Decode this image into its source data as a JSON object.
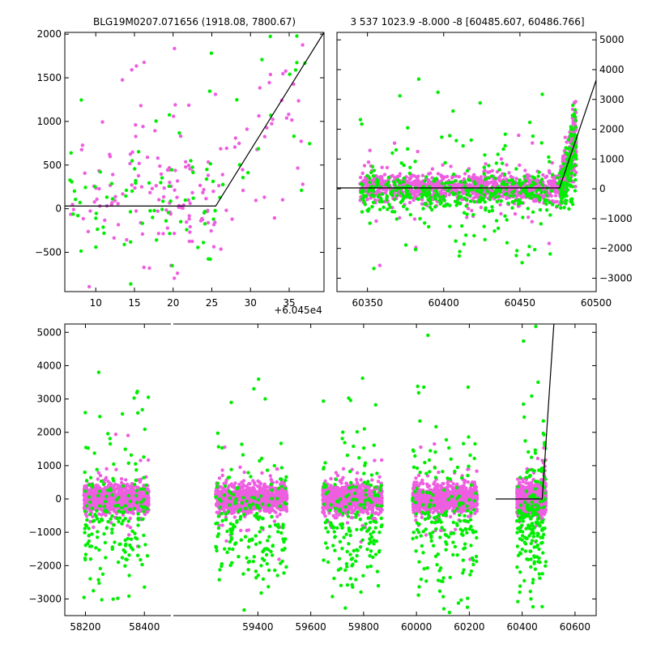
{
  "colors": {
    "magenta": "#ee5ee0",
    "green": "#00ee00",
    "line": "#000000",
    "axes": "#000000"
  },
  "chart_data": [
    {
      "type": "scatter",
      "id": "top-left",
      "title": "BLG19M0207.071656 (1918.08, 7800.67)",
      "xlim": [
        6,
        39.5
      ],
      "ylim": [
        -950,
        2020
      ],
      "xticks": [
        10,
        15,
        20,
        25,
        30,
        35
      ],
      "yticks": [
        -500,
        0,
        500,
        1000,
        1500,
        2000
      ],
      "xticklabels": [
        "10",
        "15",
        "20",
        "25",
        "30",
        "35"
      ],
      "yticklabels": [
        "−500",
        "0",
        "500",
        "1000",
        "1500",
        "2000"
      ],
      "offset_label": "+6.045e4",
      "ytick_side": "left",
      "model_line": {
        "x": [
          6,
          25.5,
          39.5
        ],
        "y": [
          30,
          30,
          2020
        ]
      },
      "series": [
        {
          "color": "magenta",
          "n": 150,
          "segments": [
            [
              6.5,
              26,
              120,
              330,
              0.35
            ],
            [
              26,
              38,
              0,
              0,
              0.5
            ]
          ]
        },
        {
          "color": "green",
          "n": 80,
          "segments": [
            [
              6.5,
              26,
              50,
              300,
              0.35
            ],
            [
              26,
              38,
              0,
              0,
              0.5
            ]
          ]
        }
      ]
    },
    {
      "type": "scatter",
      "id": "top-right",
      "title": "3 537 1023.9 -8.000 -8 [60485.607, 60486.766]",
      "xlim": [
        60330,
        60500
      ],
      "ylim": [
        -3450,
        5250
      ],
      "xticks": [
        60350,
        60400,
        60450,
        60500
      ],
      "yticks": [
        -3000,
        -2000,
        -1000,
        0,
        1000,
        2000,
        3000,
        4000,
        5000
      ],
      "xticklabels": [
        "60350",
        "60400",
        "60450",
        "60500"
      ],
      "yticklabels": [
        "−3000",
        "−2000",
        "−1000",
        "0",
        "1000",
        "2000",
        "3000",
        "4000",
        "5000"
      ],
      "ytick_side": "right",
      "model_line": {
        "x": [
          60330,
          60476,
          60500
        ],
        "y": [
          30,
          30,
          3650
        ]
      },
      "series": [
        {
          "color": "magenta",
          "n": 1100,
          "segments": [
            [
              60345,
              60480,
              30,
              230,
              0.06
            ],
            [
              60476,
              60487,
              0,
              0,
              0.5
            ]
          ]
        },
        {
          "color": "green",
          "n": 450,
          "segments": [
            [
              60345,
              60485,
              -150,
              330,
              0.22
            ],
            [
              60476,
              60487,
              0,
              0,
              0.5
            ]
          ]
        }
      ]
    },
    {
      "type": "scatter",
      "id": "bottom",
      "title": "",
      "broken_axis": true,
      "xlim": [
        58130,
        58490,
        59080,
        60680
      ],
      "ylim": [
        -3500,
        5250
      ],
      "xticks": [
        58200,
        58400,
        59400,
        59600,
        59800,
        60000,
        60200,
        60400,
        60600
      ],
      "yticks": [
        -3000,
        -2000,
        -1000,
        0,
        1000,
        2000,
        3000,
        4000,
        5000
      ],
      "xticklabels": [
        "58200",
        "58400",
        "59400",
        "59600",
        "59800",
        "60000",
        "60200",
        "60400",
        "60600"
      ],
      "yticklabels": [
        "−3000",
        "−2000",
        "−1000",
        "0",
        "1000",
        "2000",
        "3000",
        "4000",
        "5000"
      ],
      "ytick_side": "left",
      "model_line": {
        "x": [
          60300,
          60476,
          60520
        ],
        "y": [
          0,
          0,
          5250
        ]
      },
      "seasons": [
        [
          58195,
          58415
        ],
        [
          59240,
          59510
        ],
        [
          59645,
          59870
        ],
        [
          59985,
          60230
        ],
        [
          60380,
          60490
        ]
      ],
      "series": [
        {
          "color": "magenta",
          "n_per_season": 950,
          "center": 0,
          "spread": 200,
          "outlier_frac": 0.05
        },
        {
          "color": "green",
          "n_per_season": 200,
          "center": -700,
          "spread": 900,
          "outlier_frac": 0.25
        }
      ]
    }
  ]
}
